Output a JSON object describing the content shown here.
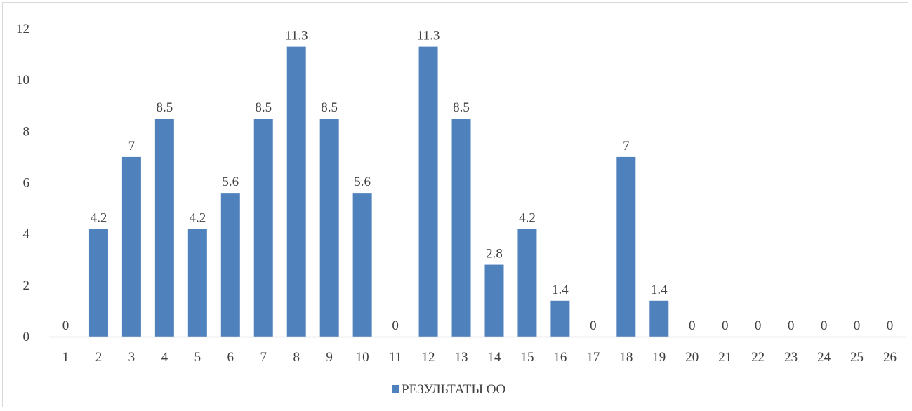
{
  "chart_data": {
    "type": "bar",
    "categories": [
      "1",
      "2",
      "3",
      "4",
      "5",
      "6",
      "7",
      "8",
      "9",
      "10",
      "11",
      "12",
      "13",
      "14",
      "15",
      "16",
      "17",
      "18",
      "19",
      "20",
      "21",
      "22",
      "23",
      "24",
      "25",
      "26"
    ],
    "series": [
      {
        "name": "РЕЗУЛЬТАТЫ ОО",
        "values": [
          0,
          4.2,
          7,
          8.5,
          4.2,
          5.6,
          8.5,
          11.3,
          8.5,
          5.6,
          0,
          11.3,
          8.5,
          2.8,
          4.2,
          1.4,
          0,
          7,
          1.4,
          0,
          0,
          0,
          0,
          0,
          0,
          0
        ],
        "labels": [
          "0",
          "4.2",
          "7",
          "8.5",
          "4.2",
          "5.6",
          "8.5",
          "11.3",
          "8.5",
          "5.6",
          "0",
          "11.3",
          "8.5",
          "2.8",
          "4.2",
          "1.4",
          "0",
          "7",
          "1.4",
          "0",
          "0",
          "0",
          "0",
          "0",
          "0",
          "0"
        ]
      }
    ],
    "yticks": [
      "0",
      "2",
      "4",
      "6",
      "8",
      "10",
      "12"
    ],
    "ylim": [
      0,
      12
    ],
    "grid": false,
    "legend_position": "bottom",
    "colors": {
      "bar": "#4F81BD",
      "axis": "#d9d9d9",
      "text": "#404040"
    }
  }
}
